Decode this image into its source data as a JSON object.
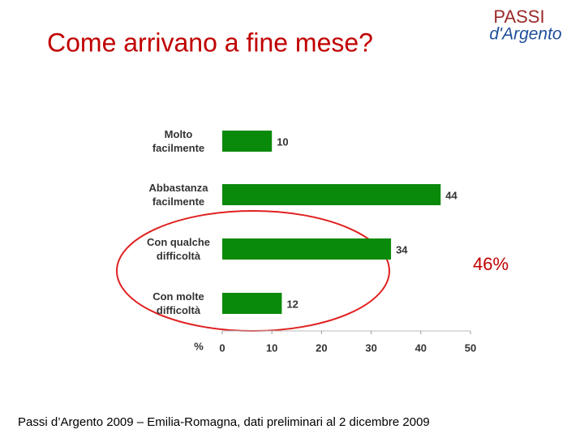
{
  "title": "Come arrivano a fine mese?",
  "logo": {
    "top": "PASSI",
    "bottom": "d'Argento"
  },
  "source": "Passi d’Argento 2009 – Emilia-Romagna, dati preliminari al 2 dicembre 2009",
  "chart_data": {
    "type": "bar",
    "orientation": "horizontal",
    "categories": [
      "Molto facilmente",
      "Abbastanza facilmente",
      "Con qualche difficoltà",
      "Con molte difficoltà"
    ],
    "values": [
      10,
      44,
      34,
      12
    ],
    "color": "#0a8a0a",
    "xlabel": "%",
    "xlim": [
      0,
      50
    ],
    "xticks": [
      0,
      10,
      20,
      30,
      40,
      50
    ],
    "annotation": "46%"
  }
}
